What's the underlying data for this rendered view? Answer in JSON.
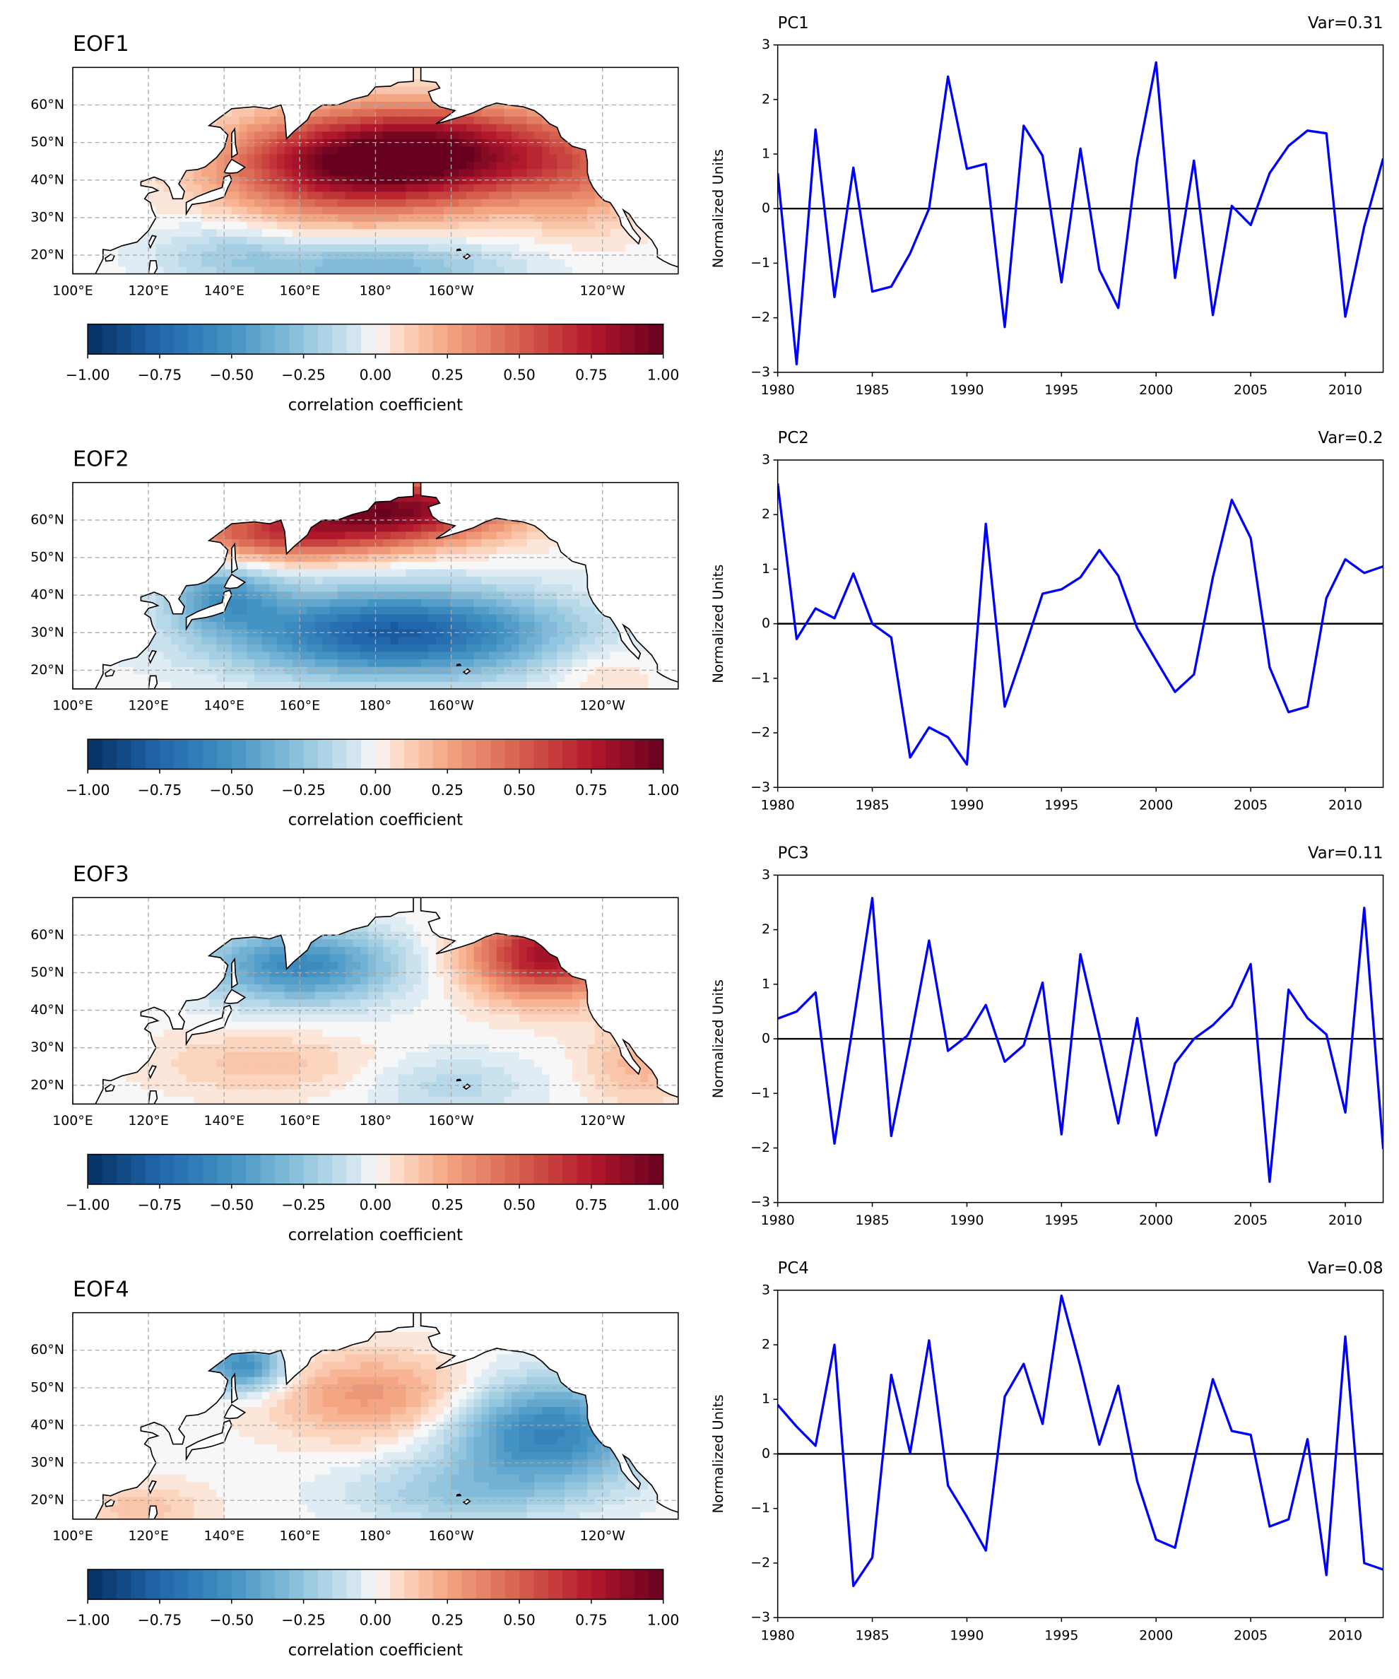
{
  "maps": [
    {
      "title": "EOF1",
      "lonlim": [
        100,
        260
      ],
      "latlim": [
        15,
        70
      ],
      "lat_ticks": [
        {
          "value": 20,
          "label": "20°N"
        },
        {
          "value": 30,
          "label": "30°N"
        },
        {
          "value": 40,
          "label": "40°N"
        },
        {
          "value": 50,
          "label": "50°N"
        },
        {
          "value": 60,
          "label": "60°N"
        }
      ],
      "lon_ticks": [
        {
          "value": 100,
          "label": "100°E"
        },
        {
          "value": 120,
          "label": "120°E"
        },
        {
          "value": 140,
          "label": "140°E"
        },
        {
          "value": 160,
          "label": "160°E"
        },
        {
          "value": 180,
          "label": "180°"
        },
        {
          "value": 200,
          "label": "160°W"
        },
        {
          "value": 240,
          "label": "120°W"
        }
      ],
      "colorbar": {
        "label": "correlation coefficient",
        "ticks": [
          {
            "value": -1,
            "label": "−1.00"
          },
          {
            "value": -0.75,
            "label": "−0.75"
          },
          {
            "value": -0.5,
            "label": "−0.50"
          },
          {
            "value": -0.25,
            "label": "−0.25"
          },
          {
            "value": 0,
            "label": "0.00"
          },
          {
            "value": 0.25,
            "label": "0.25"
          },
          {
            "value": 0.5,
            "label": "0.50"
          },
          {
            "value": 0.75,
            "label": "0.75"
          },
          {
            "value": 1,
            "label": "1.00"
          }
        ]
      }
    },
    {
      "title": "EOF2",
      "lonlim": [
        100,
        260
      ],
      "latlim": [
        15,
        70
      ],
      "lat_ticks": [
        {
          "value": 20,
          "label": "20°N"
        },
        {
          "value": 30,
          "label": "30°N"
        },
        {
          "value": 40,
          "label": "40°N"
        },
        {
          "value": 50,
          "label": "50°N"
        },
        {
          "value": 60,
          "label": "60°N"
        }
      ],
      "lon_ticks": [
        {
          "value": 100,
          "label": "100°E"
        },
        {
          "value": 120,
          "label": "120°E"
        },
        {
          "value": 140,
          "label": "140°E"
        },
        {
          "value": 160,
          "label": "160°E"
        },
        {
          "value": 180,
          "label": "180°"
        },
        {
          "value": 200,
          "label": "160°W"
        },
        {
          "value": 240,
          "label": "120°W"
        }
      ],
      "colorbar": {
        "label": "correlation coefficient",
        "ticks": [
          {
            "value": -1,
            "label": "−1.00"
          },
          {
            "value": -0.75,
            "label": "−0.75"
          },
          {
            "value": -0.5,
            "label": "−0.50"
          },
          {
            "value": -0.25,
            "label": "−0.25"
          },
          {
            "value": 0,
            "label": "0.00"
          },
          {
            "value": 0.25,
            "label": "0.25"
          },
          {
            "value": 0.5,
            "label": "0.50"
          },
          {
            "value": 0.75,
            "label": "0.75"
          },
          {
            "value": 1,
            "label": "1.00"
          }
        ]
      }
    },
    {
      "title": "EOF3",
      "lonlim": [
        100,
        260
      ],
      "latlim": [
        15,
        70
      ],
      "lat_ticks": [
        {
          "value": 20,
          "label": "20°N"
        },
        {
          "value": 30,
          "label": "30°N"
        },
        {
          "value": 40,
          "label": "40°N"
        },
        {
          "value": 50,
          "label": "50°N"
        },
        {
          "value": 60,
          "label": "60°N"
        }
      ],
      "lon_ticks": [
        {
          "value": 100,
          "label": "100°E"
        },
        {
          "value": 120,
          "label": "120°E"
        },
        {
          "value": 140,
          "label": "140°E"
        },
        {
          "value": 160,
          "label": "160°E"
        },
        {
          "value": 180,
          "label": "180°"
        },
        {
          "value": 200,
          "label": "160°W"
        },
        {
          "value": 240,
          "label": "120°W"
        }
      ],
      "colorbar": {
        "label": "correlation coefficient",
        "ticks": [
          {
            "value": -1,
            "label": "−1.00"
          },
          {
            "value": -0.75,
            "label": "−0.75"
          },
          {
            "value": -0.5,
            "label": "−0.50"
          },
          {
            "value": -0.25,
            "label": "−0.25"
          },
          {
            "value": 0,
            "label": "0.00"
          },
          {
            "value": 0.25,
            "label": "0.25"
          },
          {
            "value": 0.5,
            "label": "0.50"
          },
          {
            "value": 0.75,
            "label": "0.75"
          },
          {
            "value": 1,
            "label": "1.00"
          }
        ]
      }
    },
    {
      "title": "EOF4",
      "lonlim": [
        100,
        260
      ],
      "latlim": [
        15,
        70
      ],
      "lat_ticks": [
        {
          "value": 20,
          "label": "20°N"
        },
        {
          "value": 30,
          "label": "30°N"
        },
        {
          "value": 40,
          "label": "40°N"
        },
        {
          "value": 50,
          "label": "50°N"
        },
        {
          "value": 60,
          "label": "60°N"
        }
      ],
      "lon_ticks": [
        {
          "value": 100,
          "label": "100°E"
        },
        {
          "value": 120,
          "label": "120°E"
        },
        {
          "value": 140,
          "label": "140°E"
        },
        {
          "value": 160,
          "label": "160°E"
        },
        {
          "value": 180,
          "label": "180°"
        },
        {
          "value": 200,
          "label": "160°W"
        },
        {
          "value": 240,
          "label": "120°W"
        }
      ],
      "colorbar": {
        "label": "correlation coefficient",
        "ticks": [
          {
            "value": -1,
            "label": "−1.00"
          },
          {
            "value": -0.75,
            "label": "−0.75"
          },
          {
            "value": -0.5,
            "label": "−0.50"
          },
          {
            "value": -0.25,
            "label": "−0.25"
          },
          {
            "value": 0,
            "label": "0.00"
          },
          {
            "value": 0.25,
            "label": "0.25"
          },
          {
            "value": 0.5,
            "label": "0.50"
          },
          {
            "value": 0.75,
            "label": "0.75"
          },
          {
            "value": 1,
            "label": "1.00"
          }
        ]
      }
    }
  ],
  "chart_data": [
    {
      "type": "line",
      "title": "PC1",
      "subtitle": "Var=0.31",
      "ylabel": "Normalized Units",
      "x": [
        1980,
        1981,
        1982,
        1983,
        1984,
        1985,
        1986,
        1987,
        1988,
        1989,
        1990,
        1991,
        1992,
        1993,
        1994,
        1995,
        1996,
        1997,
        1998,
        1999,
        2000,
        2001,
        2002,
        2003,
        2004,
        2005,
        2006,
        2007,
        2008,
        2009,
        2010,
        2011,
        2012
      ],
      "series": [
        {
          "color": "#0000ff",
          "values": [
            0.65,
            -2.85,
            1.45,
            -1.62,
            0.75,
            -1.52,
            -1.43,
            -0.82,
            0.0,
            2.42,
            0.73,
            0.82,
            -2.17,
            1.52,
            0.97,
            -1.35,
            1.1,
            -1.12,
            -1.82,
            0.9,
            2.68,
            -1.27,
            0.88,
            -1.95,
            0.05,
            -0.3,
            0.65,
            1.15,
            1.43,
            1.38,
            -1.98,
            -0.33,
            0.92
          ]
        }
      ],
      "xlim": [
        1980,
        2012
      ],
      "xticks": [
        1980,
        1985,
        1990,
        1995,
        2000,
        2005,
        2010
      ],
      "ylim": [
        -3,
        3
      ],
      "yticks": [
        {
          "value": -3,
          "label": "−3"
        },
        {
          "value": -2,
          "label": "−2"
        },
        {
          "value": -1,
          "label": "−1"
        },
        0,
        1,
        2,
        3
      ]
    },
    {
      "type": "line",
      "title": "PC2",
      "subtitle": "Var=0.2",
      "ylabel": "Normalized Units",
      "x": [
        1980,
        1981,
        1982,
        1983,
        1984,
        1985,
        1986,
        1987,
        1988,
        1989,
        1990,
        1991,
        1992,
        1993,
        1994,
        1995,
        1996,
        1997,
        1998,
        1999,
        2000,
        2001,
        2002,
        2003,
        2004,
        2005,
        2006,
        2007,
        2008,
        2009,
        2010,
        2011,
        2012
      ],
      "series": [
        {
          "color": "#0000ff",
          "values": [
            2.57,
            -0.28,
            0.28,
            0.1,
            0.92,
            0.0,
            -0.25,
            -2.45,
            -1.9,
            -2.08,
            -2.58,
            1.83,
            -1.52,
            -0.5,
            0.55,
            0.63,
            0.85,
            1.35,
            0.88,
            -0.08,
            -0.67,
            -1.25,
            -0.93,
            0.85,
            2.27,
            1.57,
            -0.8,
            -1.62,
            -1.52,
            0.47,
            1.18,
            0.93,
            1.05
          ]
        }
      ],
      "xlim": [
        1980,
        2012
      ],
      "xticks": [
        1980,
        1985,
        1990,
        1995,
        2000,
        2005,
        2010
      ],
      "ylim": [
        -3,
        3
      ],
      "yticks": [
        {
          "value": -3,
          "label": "−3"
        },
        {
          "value": -2,
          "label": "−2"
        },
        {
          "value": -1,
          "label": "−1"
        },
        0,
        1,
        2,
        3
      ]
    },
    {
      "type": "line",
      "title": "PC3",
      "subtitle": "Var=0.11",
      "ylabel": "Normalized Units",
      "x": [
        1980,
        1981,
        1982,
        1983,
        1984,
        1985,
        1986,
        1987,
        1988,
        1989,
        1990,
        1991,
        1992,
        1993,
        1994,
        1995,
        1996,
        1997,
        1998,
        1999,
        2000,
        2001,
        2002,
        2003,
        2004,
        2005,
        2006,
        2007,
        2008,
        2009,
        2010,
        2011,
        2012
      ],
      "series": [
        {
          "color": "#0000ff",
          "values": [
            0.37,
            0.5,
            0.85,
            -1.92,
            0.3,
            2.58,
            -1.78,
            -0.05,
            1.8,
            -0.22,
            0.05,
            0.62,
            -0.42,
            -0.12,
            1.03,
            -1.75,
            1.55,
            0.05,
            -1.55,
            0.38,
            -1.77,
            -0.45,
            0.0,
            0.25,
            0.6,
            1.37,
            -2.62,
            0.9,
            0.38,
            0.08,
            -1.35,
            2.4,
            -2.02
          ]
        }
      ],
      "xlim": [
        1980,
        2012
      ],
      "xticks": [
        1980,
        1985,
        1990,
        1995,
        2000,
        2005,
        2010
      ],
      "ylim": [
        -3,
        3
      ],
      "yticks": [
        {
          "value": -3,
          "label": "−3"
        },
        {
          "value": -2,
          "label": "−2"
        },
        {
          "value": -1,
          "label": "−1"
        },
        0,
        1,
        2,
        3
      ]
    },
    {
      "type": "line",
      "title": "PC4",
      "subtitle": "Var=0.08",
      "ylabel": "Normalized Units",
      "x": [
        1980,
        1981,
        1982,
        1983,
        1984,
        1985,
        1986,
        1987,
        1988,
        1989,
        1990,
        1991,
        1992,
        1993,
        1994,
        1995,
        1996,
        1997,
        1998,
        1999,
        2000,
        2001,
        2002,
        2003,
        2004,
        2005,
        2006,
        2007,
        2008,
        2009,
        2010,
        2011,
        2012
      ],
      "series": [
        {
          "color": "#0000ff",
          "values": [
            0.9,
            0.5,
            0.15,
            2.0,
            -2.42,
            -1.9,
            1.45,
            0.02,
            2.08,
            -0.58,
            -1.15,
            -1.77,
            1.05,
            1.65,
            0.55,
            2.9,
            1.6,
            0.17,
            1.25,
            -0.5,
            -1.57,
            -1.72,
            -0.15,
            1.37,
            0.42,
            0.35,
            -1.33,
            -1.2,
            0.27,
            -2.22,
            2.15,
            -2.0,
            -2.12
          ]
        }
      ],
      "xlim": [
        1980,
        2012
      ],
      "xticks": [
        1980,
        1985,
        1990,
        1995,
        2000,
        2005,
        2010
      ],
      "ylim": [
        -3,
        3
      ],
      "yticks": [
        {
          "value": -3,
          "label": "−3"
        },
        {
          "value": -2,
          "label": "−2"
        },
        {
          "value": -1,
          "label": "−1"
        },
        0,
        1,
        2,
        3
      ]
    }
  ]
}
